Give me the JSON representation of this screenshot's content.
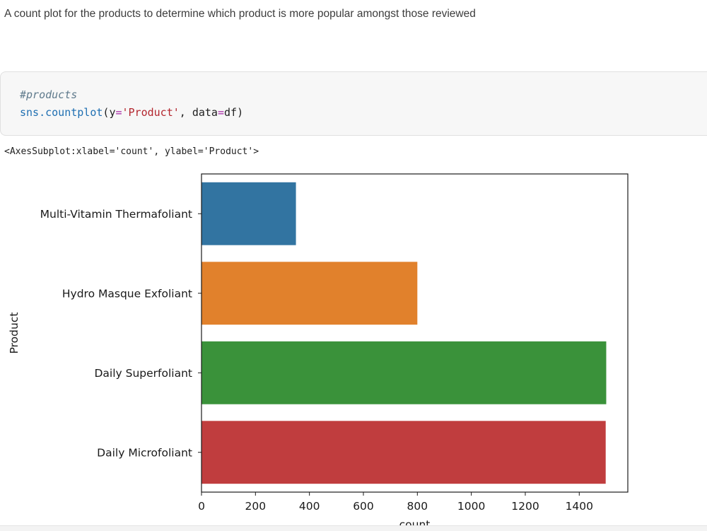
{
  "notebook": {
    "markdown_text": "A count plot for the products to determine which product is more popular amongst those reviewed",
    "code": {
      "comment": "#products",
      "call_fn": "sns.countplot",
      "call_open": "(",
      "arg_y_kw": "y",
      "arg_eq": "=",
      "arg_y_val": "'Product'",
      "arg_sep": ", ",
      "arg_data_kw": "data",
      "arg_data_val": "df",
      "call_close": ")"
    },
    "output_repr": "<AxesSubplot:xlabel='count', ylabel='Product'>"
  },
  "chart_data": {
    "type": "bar",
    "orientation": "horizontal",
    "categories": [
      "Multi-Vitamin Thermafoliant",
      "Hydro Masque Exfoliant",
      "Daily Superfoliant",
      "Daily Microfoliant"
    ],
    "values": [
      350,
      800,
      1500,
      1498
    ],
    "colors": [
      "#3274a1",
      "#e1812c",
      "#3a923a",
      "#c03d3e"
    ],
    "xlabel": "count",
    "ylabel": "Product",
    "xlim": [
      0,
      1580
    ],
    "xticks": [
      0,
      200,
      400,
      600,
      800,
      1000,
      1200,
      1400
    ],
    "grid": false
  }
}
